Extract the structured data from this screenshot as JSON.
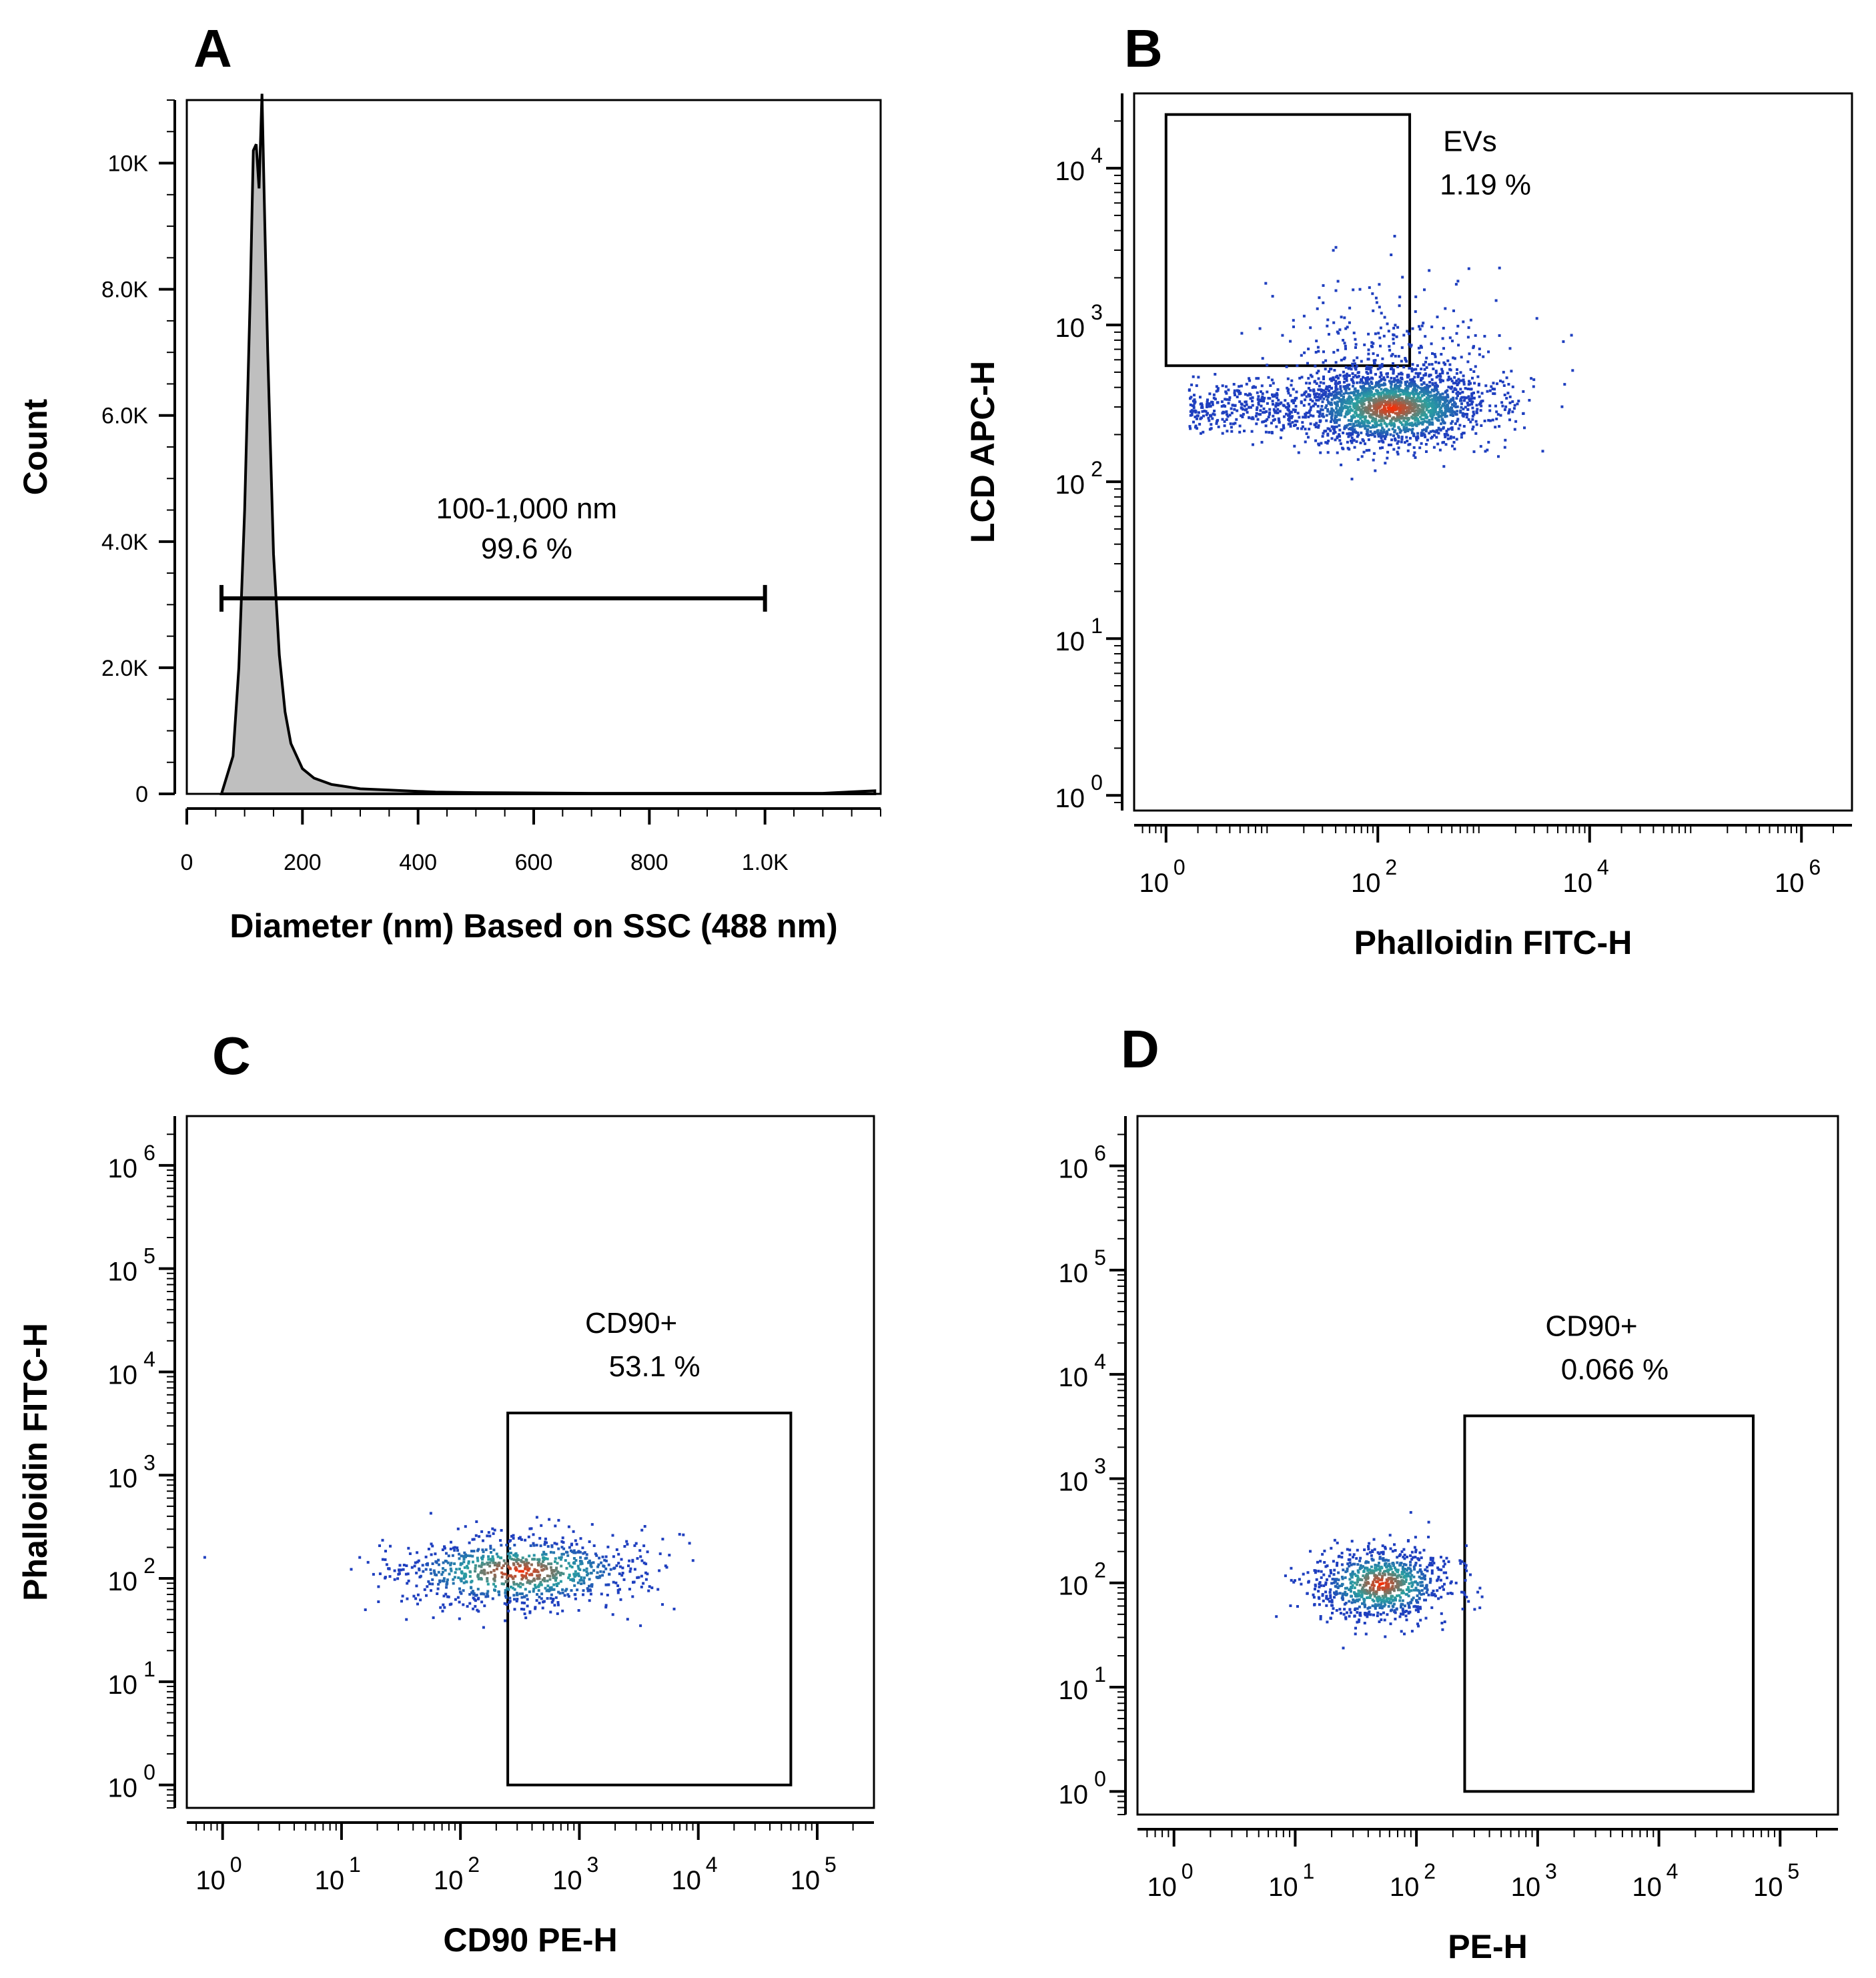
{
  "colors": {
    "histogram_fill": "#bfbfbf",
    "density_low": "#1f3fbf",
    "density_mid": "#2aa0a0",
    "density_high": "#ff2a00"
  },
  "chart_data": [
    {
      "panel": "A",
      "type": "area",
      "xlabel": "Diameter (nm) Based on SSC (488 nm)",
      "ylabel": "Count",
      "xlim": [
        0,
        1200
      ],
      "ylim": [
        0,
        11000
      ],
      "x_ticks": [
        0,
        200,
        400,
        600,
        800,
        1000
      ],
      "x_tick_labels": [
        "0",
        "200",
        "400",
        "600",
        "800",
        "1.0K"
      ],
      "y_ticks": [
        0,
        2000,
        4000,
        6000,
        8000,
        10000
      ],
      "y_tick_labels": [
        "0",
        "2.0K",
        "4.0K",
        "6.0K",
        "8.0K",
        "10K"
      ],
      "x": [
        60,
        80,
        90,
        100,
        110,
        115,
        120,
        125,
        130,
        135,
        140,
        150,
        160,
        170,
        180,
        200,
        220,
        250,
        300,
        350,
        400,
        430,
        500,
        700,
        900,
        1100,
        1190
      ],
      "values": [
        0,
        600,
        2000,
        4500,
        8000,
        10200,
        10300,
        9600,
        11100,
        9000,
        7000,
        3800,
        2200,
        1300,
        800,
        400,
        250,
        150,
        80,
        60,
        40,
        30,
        20,
        10,
        10,
        10,
        50
      ],
      "gate": {
        "name": "100-1,000 nm",
        "percent": "99.6 %",
        "x_start": 60,
        "x_end": 1000,
        "y": 3100
      }
    },
    {
      "panel": "B",
      "type": "scatter",
      "xlabel": "Phalloidin FITC-H",
      "ylabel": "LCD APC-H",
      "x_scale": "log",
      "y_scale": "log",
      "xlim": [
        0.5,
        3000000
      ],
      "ylim": [
        0.8,
        30000
      ],
      "x_tick_exponents": [
        0,
        2,
        4,
        6
      ],
      "y_tick_exponents": [
        0,
        1,
        2,
        3,
        4
      ],
      "gate": {
        "name": "EVs",
        "percent": "1.19 %",
        "x_range": [
          1,
          200
        ],
        "y_range": [
          550,
          22000
        ]
      },
      "density_center": {
        "x": 130,
        "y": 300
      }
    },
    {
      "panel": "C",
      "type": "scatter",
      "xlabel": "CD90 PE-H",
      "ylabel": "Phalloidin FITC-H",
      "x_scale": "log",
      "y_scale": "log",
      "xlim": [
        0.5,
        300000
      ],
      "ylim": [
        0.6,
        3000000
      ],
      "x_tick_exponents": [
        0,
        1,
        2,
        3,
        4,
        5
      ],
      "y_tick_exponents": [
        0,
        1,
        2,
        3,
        4,
        5,
        6
      ],
      "gate": {
        "name": "CD90+",
        "percent": "53.1 %",
        "x_range": [
          250,
          60000
        ],
        "y_range": [
          1,
          4000
        ]
      },
      "density_center": {
        "x": 300,
        "y": 120
      }
    },
    {
      "panel": "D",
      "type": "scatter",
      "xlabel": "PE-H",
      "ylabel": "",
      "x_scale": "log",
      "y_scale": "log",
      "xlim": [
        0.5,
        300000
      ],
      "ylim": [
        0.6,
        3000000
      ],
      "x_tick_exponents": [
        0,
        1,
        2,
        3,
        4,
        5
      ],
      "y_tick_exponents": [
        0,
        1,
        2,
        3,
        4,
        5,
        6
      ],
      "gate": {
        "name": "CD90+",
        "percent": "0.066 %",
        "x_range": [
          250,
          60000
        ],
        "y_range": [
          1,
          4000
        ]
      },
      "density_center": {
        "x": 50,
        "y": 100
      }
    }
  ]
}
